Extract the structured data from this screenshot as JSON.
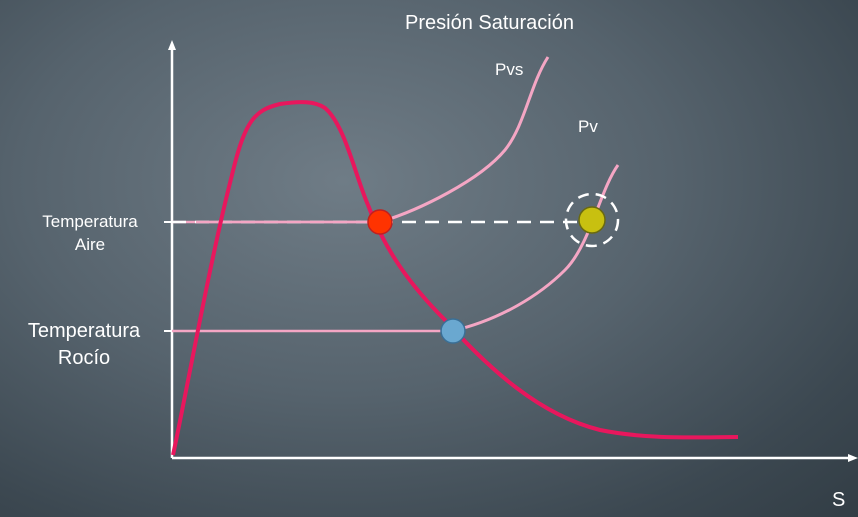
{
  "title": "Presión Saturación",
  "curves": {
    "pvs": "Pvs",
    "pv": "Pv"
  },
  "y_labels": {
    "air_temp_line1": "Temperatura",
    "air_temp_line2": "Aire",
    "dew_temp_line1": "Temperatura",
    "dew_temp_line2": "Rocío"
  },
  "x_axis_label": "S",
  "colors": {
    "main_curve": "#e8175d",
    "pvs_curve": "#f4a6c4",
    "point_air": "#ff3300",
    "point_dew": "#6aa8d0",
    "point_pv": "#c8c010",
    "axis": "#ffffff"
  }
}
